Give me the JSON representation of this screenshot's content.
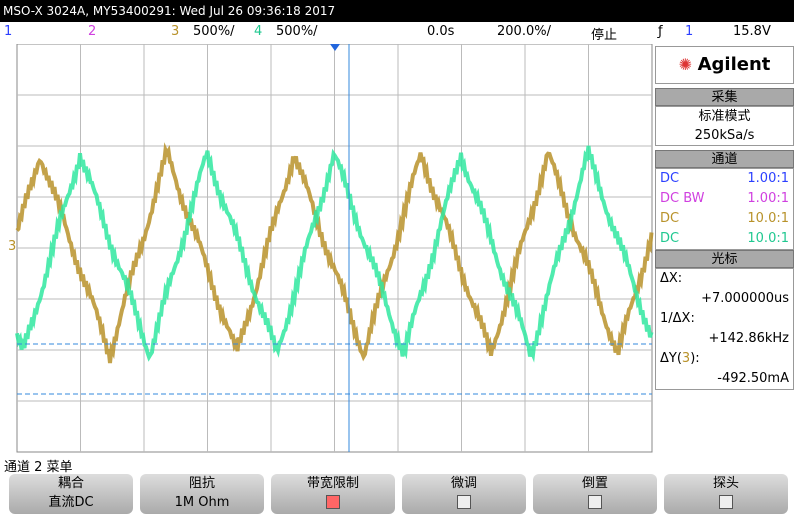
{
  "title_bar": "MSO-X 3024A, MY53400291: Wed Jul 26 09:36:18 2017",
  "status": {
    "ch1": "1",
    "ch2": "2",
    "ch3": "3",
    "ch3_scale": "500%/",
    "ch4": "4",
    "ch4_scale": "500%/",
    "time_offset": "0.0s",
    "timebase": "200.0%/",
    "run_state": "停止",
    "trigger_icon": "ƒ",
    "trigger_channel": "1",
    "trigger_level": "15.8V"
  },
  "screen": {
    "channel_marker": "3"
  },
  "sidebar": {
    "brand": "Agilent",
    "acquire": {
      "header": "采集",
      "mode": "标准模式",
      "rate": "250kSa/s"
    },
    "channels": {
      "header": "通道",
      "rows": [
        {
          "coupling": "DC",
          "ratio": "1.00:1"
        },
        {
          "coupling": "DC BW",
          "ratio": "1.00:1"
        },
        {
          "coupling": "DC",
          "ratio": "10.0:1"
        },
        {
          "coupling": "DC",
          "ratio": "10.0:1"
        }
      ]
    },
    "cursors": {
      "header": "光标",
      "dx_label": "ΔX:",
      "dx_value": "+7.000000us",
      "inv_label": "1/ΔX:",
      "inv_value": "+142.86kHz",
      "dy_label": "ΔY(",
      "dy_channel": "3",
      "dy_close": "):",
      "dy_value": "-492.50mA"
    }
  },
  "menu": {
    "title": "通道 2 菜单",
    "softkeys": [
      {
        "label": "耦合",
        "value": "直流DC"
      },
      {
        "label": "阻抗",
        "value": "1M Ohm"
      },
      {
        "label": "带宽限制"
      },
      {
        "label": "微调"
      },
      {
        "label": "倒置"
      },
      {
        "label": "探头"
      }
    ]
  }
}
